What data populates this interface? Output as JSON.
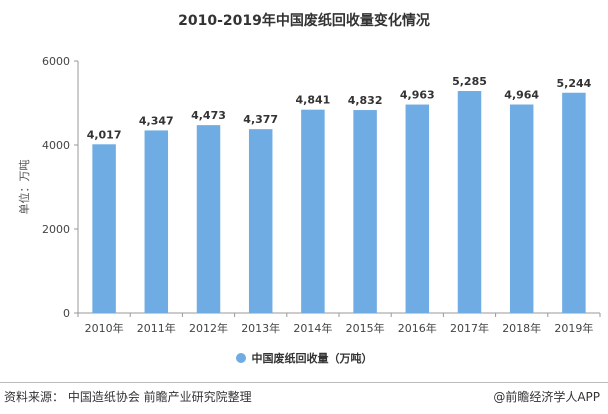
{
  "colors": {
    "bar": "#6FACE3",
    "grid": "#DDDDDD",
    "axis": "#999999"
  },
  "chart_data": {
    "type": "bar",
    "title": "2010-2019年中国废纸回收量变化情况",
    "ylabel": "单位：万吨",
    "xlabel": "",
    "categories": [
      "2010年",
      "2011年",
      "2012年",
      "2013年",
      "2014年",
      "2015年",
      "2016年",
      "2017年",
      "2018年",
      "2019年"
    ],
    "series": [
      {
        "name": "中国废纸回收量（万吨）",
        "values": [
          4017,
          4347,
          4473,
          4377,
          4841,
          4832,
          4963,
          5285,
          4964,
          5244
        ],
        "data_labels": [
          "4,017",
          "4,347",
          "4,473",
          "4,377",
          "4,841",
          "4,832",
          "4,963",
          "5,285",
          "4,964",
          "5,244"
        ]
      }
    ],
    "ylim": [
      0,
      6000
    ],
    "yticks": [
      0,
      2000,
      4000,
      6000
    ],
    "grid": false,
    "legend": "bottom"
  },
  "footer": {
    "source": "资料来源：  中国造纸协会 前瞻产业研究院整理",
    "brand": "@前瞻经济学人APP"
  }
}
